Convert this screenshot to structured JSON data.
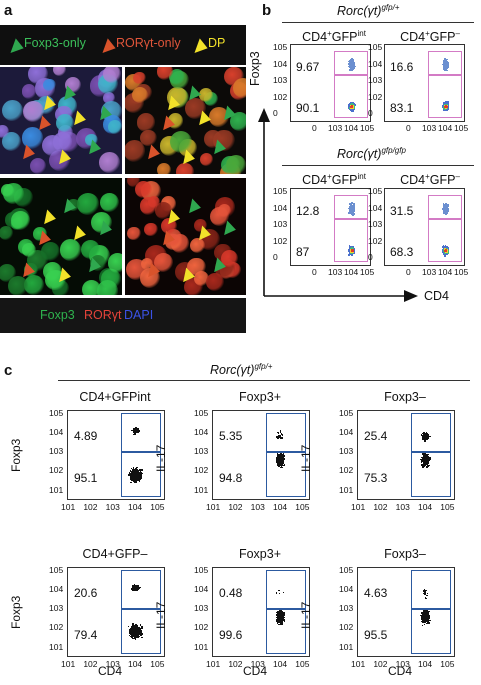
{
  "panels": {
    "a": "a",
    "b": "b",
    "c": "c"
  },
  "legend_top": {
    "foxp3_only": "Foxp3-only",
    "ror_only": "RORγt-only",
    "dp": "DP",
    "colors": {
      "foxp3": "#2fa84f",
      "ror": "#d9532b",
      "dp": "#f2e22a"
    }
  },
  "legend_bottom": {
    "foxp3": "Foxp3",
    "ror": "RORγt",
    "dapi": "DAPI",
    "colors": {
      "foxp3": "#2fb24e",
      "ror": "#e4433a",
      "dapi": "#2b3fd6"
    }
  },
  "panel_b": {
    "genotype_top": "Rorc(γt)gfp/+",
    "genotype_bottom": "Rorc(γt)gfp/gfp",
    "col_titles": [
      "CD4+GFPint",
      "CD4+GFP–"
    ],
    "y_axis": "Foxp3",
    "x_axis": "CD4",
    "plots": [
      {
        "upper": "9.67",
        "lower": "90.1"
      },
      {
        "upper": "16.6",
        "lower": "83.1"
      },
      {
        "upper": "12.8",
        "lower": "87"
      },
      {
        "upper": "31.5",
        "lower": "68.3"
      }
    ],
    "y_ticks": [
      "105",
      "104",
      "103",
      "102",
      "0"
    ],
    "x_ticks": [
      "0",
      "103",
      "104",
      "105"
    ]
  },
  "panel_c": {
    "genotype": "Rorc(γt)gfp/+",
    "plots": [
      {
        "title": "CD4+GFPint",
        "ylabel": "Foxp3",
        "upper": "4.89",
        "lower": "95.1"
      },
      {
        "title": "Foxp3+",
        "ylabel": "IL-17",
        "upper": "5.35",
        "lower": "94.8"
      },
      {
        "title": "Foxp3–",
        "ylabel": "IL-17",
        "upper": "25.4",
        "lower": "75.3"
      },
      {
        "title": "CD4+GFP–",
        "ylabel": "Foxp3",
        "upper": "20.6",
        "lower": "79.4"
      },
      {
        "title": "Foxp3+",
        "ylabel": "IL-17",
        "upper": "0.48",
        "lower": "99.6"
      },
      {
        "title": "Foxp3–",
        "ylabel": "IL-17",
        "upper": "4.63",
        "lower": "95.5"
      }
    ],
    "x_axis": "CD4",
    "y_ticks": [
      "105",
      "104",
      "103",
      "102",
      "101"
    ],
    "x_ticks": [
      "101",
      "102",
      "103",
      "104",
      "105"
    ]
  }
}
